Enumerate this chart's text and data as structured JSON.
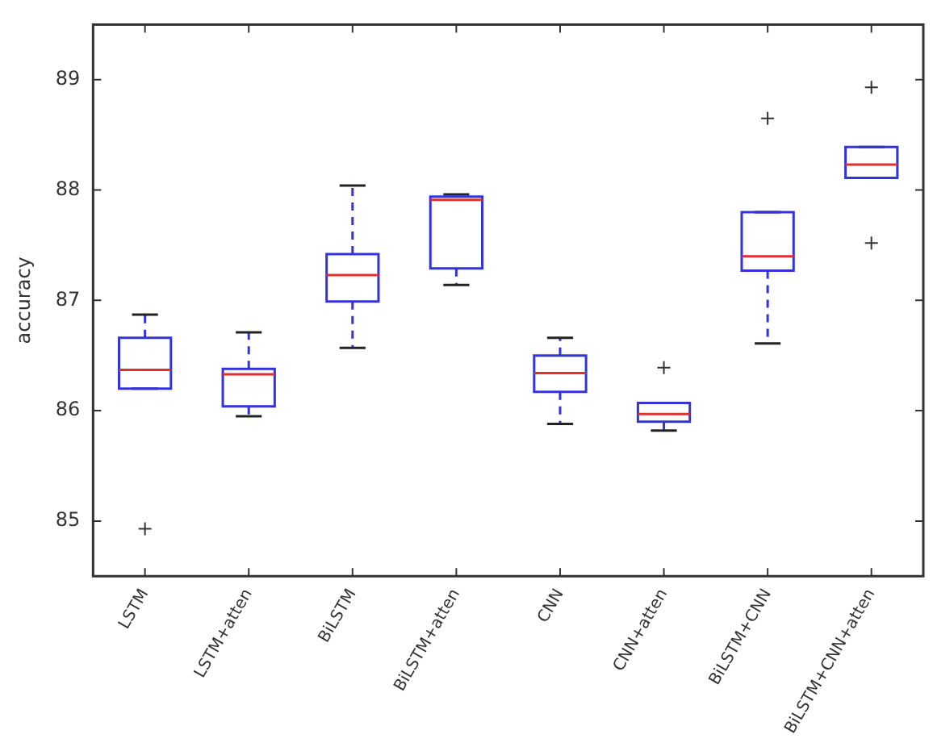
{
  "chart_data": {
    "type": "box",
    "ylabel": "accuracy",
    "categories": [
      "LSTM",
      "LSTM+atten",
      "BiLSTM",
      "BiLSTM+atten",
      "CNN",
      "CNN+atten",
      "BiLSTM+CNN",
      "BiLSTM+CNN+atten"
    ],
    "series": [
      {
        "color": "#3333dd",
        "boxes": [
          {
            "low": 86.2,
            "q1": 86.2,
            "median": 86.37,
            "q3": 86.66,
            "high": 86.87,
            "outliers": [
              84.93
            ]
          },
          {
            "low": 85.95,
            "q1": 86.04,
            "median": 86.33,
            "q3": 86.38,
            "high": 86.71
          },
          {
            "low": 86.57,
            "q1": 86.99,
            "median": 87.23,
            "q3": 87.42,
            "high": 88.04
          },
          {
            "low": 87.14,
            "q1": 87.29,
            "median": 87.91,
            "q3": 87.94,
            "high": 87.96
          },
          {
            "low": 85.88,
            "q1": 86.17,
            "median": 86.34,
            "q3": 86.5,
            "high": 86.66
          },
          {
            "low": 85.82,
            "q1": 85.9,
            "median": 85.97,
            "q3": 86.07,
            "high": 86.07,
            "outliers": [
              86.39
            ]
          },
          {
            "low": 86.61,
            "q1": 87.27,
            "median": 87.4,
            "q3": 87.8,
            "high": 87.8,
            "outliers": [
              88.65
            ]
          },
          {
            "low": 88.11,
            "q1": 88.11,
            "median": 88.23,
            "q3": 88.39,
            "high": 88.39,
            "outliers": [
              88.93,
              87.52
            ]
          }
        ]
      }
    ],
    "ylim": [
      84.5,
      89.5
    ],
    "yticks": [
      85,
      86,
      87,
      88,
      89
    ],
    "grid": false,
    "legend": false
  }
}
